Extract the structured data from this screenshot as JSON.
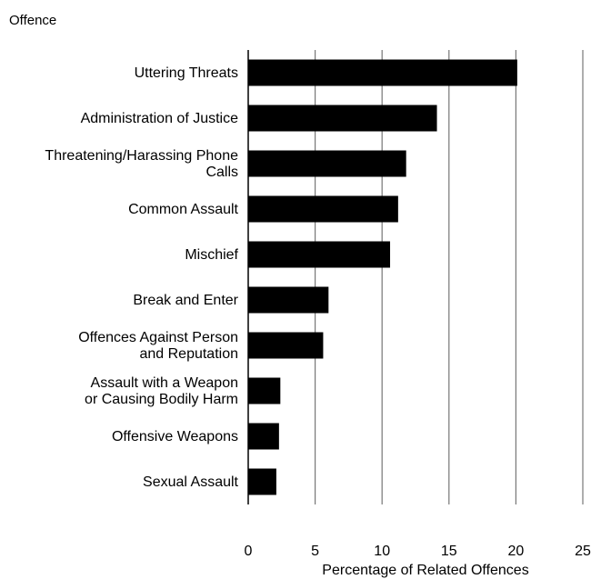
{
  "chart_data": {
    "type": "bar",
    "orientation": "horizontal",
    "title": "Offence",
    "xlabel": "Percentage of Related Offences",
    "ylabel": "",
    "categories": [
      [
        "Uttering Threats"
      ],
      [
        "Administration of Justice"
      ],
      [
        "Threatening/Harassing Phone",
        "Calls"
      ],
      [
        "Common Assault"
      ],
      [
        "Mischief"
      ],
      [
        "Break and Enter"
      ],
      [
        "Offences Against Person",
        "and Reputation"
      ],
      [
        "Assault with a Weapon",
        "or Causing Bodily Harm"
      ],
      [
        "Offensive Weapons"
      ],
      [
        "Sexual Assault"
      ]
    ],
    "values": [
      20.1,
      14.1,
      11.8,
      11.2,
      10.6,
      6.0,
      5.6,
      2.4,
      2.3,
      2.1
    ],
    "xlim": [
      0,
      25
    ],
    "xticks": [
      "0",
      "5",
      "10",
      "15",
      "20",
      "25"
    ],
    "grid": true,
    "bar_color": "#000000",
    "grid_color": "#777777"
  }
}
